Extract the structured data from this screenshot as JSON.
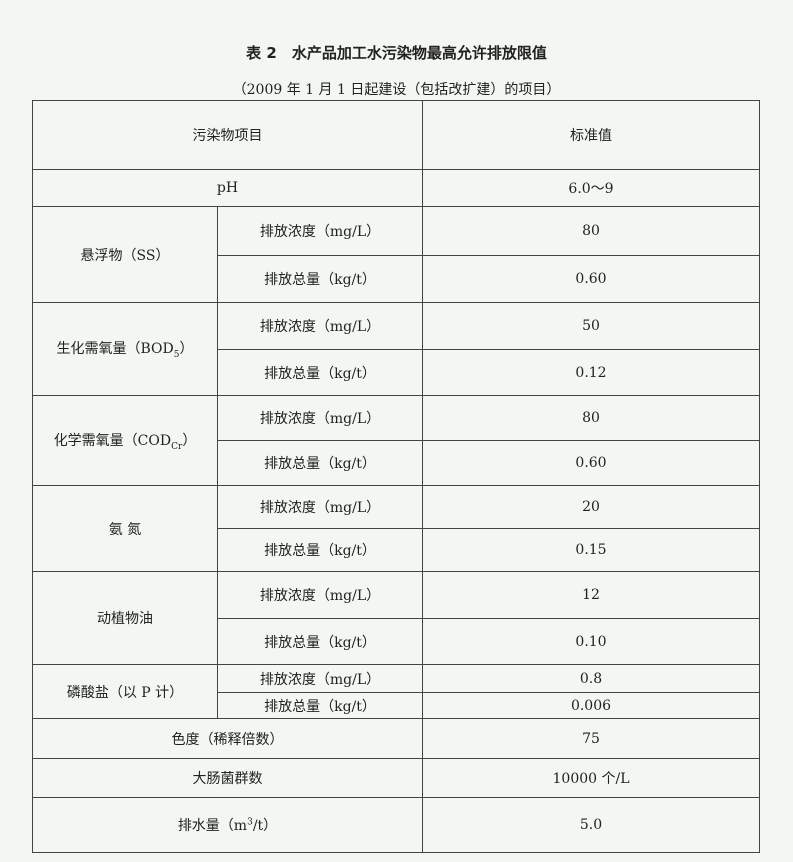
{
  "title": "表 2　水产品加工水污染物最高允许排放限值",
  "subtitle": "（2009 年 1 月 1 日起建设（包括改扩建）的项目）",
  "header": {
    "item": "污染物项目",
    "value": "标准值"
  },
  "conc_label": "排放浓度（mg/L）",
  "total_label": "排放总量（kg/t）",
  "rows": {
    "ph": {
      "label": "pH",
      "value": "6.0～9"
    },
    "ss": {
      "label": "悬浮物（SS）",
      "conc": "80",
      "total": "0.60"
    },
    "bod": {
      "label": "生化需氧量（BOD",
      "sub": "5",
      "label_end": "）",
      "conc": "50",
      "total": "0.12"
    },
    "cod": {
      "label": "化学需氧量（COD",
      "sub": "Cr",
      "label_end": "）",
      "conc": "80",
      "total": "0.60"
    },
    "nh": {
      "label": "氨 氮",
      "conc": "20",
      "total": "0.15"
    },
    "oil": {
      "label": "动植物油",
      "conc": "12",
      "total": "0.10"
    },
    "p": {
      "label": "磷酸盐（以 P 计）",
      "conc": "0.8",
      "total": "0.006"
    },
    "color": {
      "label": "色度（稀释倍数）",
      "value": "75"
    },
    "coli": {
      "label": "大肠菌群数",
      "value": "10000 个/L"
    },
    "water": {
      "label": "排水量（m",
      "sup": "3",
      "label_end": "/t）",
      "value": "5.0"
    }
  }
}
